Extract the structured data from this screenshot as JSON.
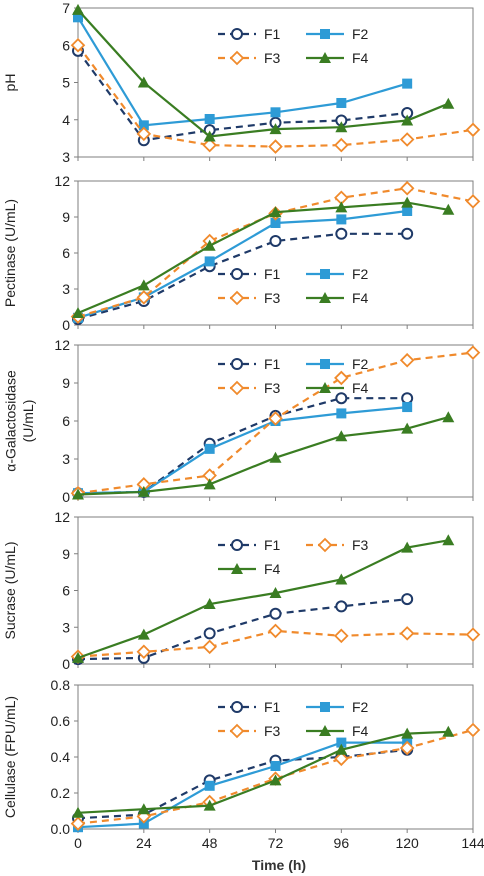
{
  "figure": {
    "xlabel": "Time (h)"
  },
  "series_styles": {
    "F1": {
      "color": "#1f3a68",
      "dash": "7,5",
      "marker": "open-circle"
    },
    "F2": {
      "color": "#2e9bd6",
      "dash": "",
      "marker": "square"
    },
    "F3": {
      "color": "#f08a2c",
      "dash": "7,5",
      "marker": "open-diamond"
    },
    "F4": {
      "color": "#3a7d22",
      "dash": "",
      "marker": "triangle"
    }
  },
  "chart_data": [
    {
      "type": "line",
      "ylabel": "pH",
      "xlabel": "Time (h)",
      "xlim": [
        0,
        144
      ],
      "xticks": [
        0,
        24,
        48,
        72,
        96,
        120,
        144
      ],
      "ylim": [
        3,
        7
      ],
      "yticks": [
        3,
        4,
        5,
        6,
        7
      ],
      "legend_cols": 2,
      "legend_order": [
        "F1",
        "F2",
        "F3",
        "F4"
      ],
      "series": [
        {
          "name": "F1",
          "x": [
            0,
            24,
            48,
            72,
            96,
            120
          ],
          "y": [
            5.85,
            3.45,
            3.72,
            3.92,
            3.98,
            4.18
          ]
        },
        {
          "name": "F2",
          "x": [
            0,
            24,
            48,
            72,
            96,
            120
          ],
          "y": [
            6.75,
            3.85,
            4.02,
            4.2,
            4.45,
            4.97
          ]
        },
        {
          "name": "F3",
          "x": [
            0,
            24,
            48,
            72,
            96,
            120,
            144
          ],
          "y": [
            6.0,
            3.62,
            3.32,
            3.28,
            3.32,
            3.47,
            3.73
          ]
        },
        {
          "name": "F4",
          "x": [
            0,
            24,
            48,
            72,
            96,
            120,
            135
          ],
          "y": [
            6.95,
            5.0,
            3.55,
            3.75,
            3.8,
            3.98,
            4.43
          ]
        }
      ]
    },
    {
      "type": "line",
      "ylabel": "Pectinase (U/mL)",
      "xlabel": "Time (h)",
      "xlim": [
        0,
        144
      ],
      "xticks": [
        0,
        24,
        48,
        72,
        96,
        120,
        144
      ],
      "ylim": [
        0,
        12
      ],
      "yticks": [
        0,
        3,
        6,
        9,
        12
      ],
      "legend_cols": 2,
      "legend_order": [
        "F1",
        "F2",
        "F3",
        "F4"
      ],
      "series": [
        {
          "name": "F1",
          "x": [
            0,
            24,
            48,
            72,
            96,
            120
          ],
          "y": [
            0.5,
            2.0,
            4.9,
            7.0,
            7.6,
            7.6
          ]
        },
        {
          "name": "F2",
          "x": [
            0,
            24,
            48,
            72,
            96,
            120
          ],
          "y": [
            0.6,
            2.3,
            5.3,
            8.5,
            8.8,
            9.5
          ]
        },
        {
          "name": "F3",
          "x": [
            0,
            24,
            48,
            72,
            96,
            120,
            144
          ],
          "y": [
            0.7,
            2.3,
            7.0,
            9.3,
            10.6,
            11.4,
            10.3
          ]
        },
        {
          "name": "F4",
          "x": [
            0,
            24,
            48,
            72,
            96,
            120,
            135
          ],
          "y": [
            1.0,
            3.3,
            6.6,
            9.4,
            9.8,
            10.2,
            9.6
          ]
        }
      ]
    },
    {
      "type": "line",
      "ylabel": "α-Galactosidase (U/mL)",
      "xlabel": "Time (h)",
      "xlim": [
        0,
        144
      ],
      "xticks": [
        0,
        24,
        48,
        72,
        96,
        120,
        144
      ],
      "ylim": [
        0,
        12
      ],
      "yticks": [
        0,
        3,
        6,
        9,
        12
      ],
      "legend_cols": 2,
      "legend_order": [
        "F1",
        "F2",
        "F3",
        "F4"
      ],
      "series": [
        {
          "name": "F1",
          "x": [
            0,
            24,
            48,
            72,
            96,
            120
          ],
          "y": [
            0.3,
            0.4,
            4.2,
            6.4,
            7.8,
            7.8
          ]
        },
        {
          "name": "F2",
          "x": [
            0,
            24,
            48,
            72,
            96,
            120
          ],
          "y": [
            0.3,
            0.4,
            3.8,
            6.0,
            6.6,
            7.1
          ]
        },
        {
          "name": "F3",
          "x": [
            0,
            24,
            48,
            72,
            96,
            120,
            144
          ],
          "y": [
            0.3,
            1.0,
            1.7,
            6.2,
            9.4,
            10.8,
            11.4
          ]
        },
        {
          "name": "F4",
          "x": [
            0,
            24,
            48,
            72,
            96,
            120,
            135
          ],
          "y": [
            0.2,
            0.4,
            1.0,
            3.1,
            4.8,
            5.4,
            6.3
          ]
        }
      ]
    },
    {
      "type": "line",
      "ylabel": "Sucrase (U/mL)",
      "xlabel": "Time (h)",
      "xlim": [
        0,
        144
      ],
      "xticks": [
        0,
        24,
        48,
        72,
        96,
        120,
        144
      ],
      "ylim": [
        0,
        12
      ],
      "yticks": [
        0,
        3,
        6,
        9,
        12
      ],
      "legend_cols": 2,
      "legend_order": [
        "F1",
        "F3",
        "F4"
      ],
      "series": [
        {
          "name": "F1",
          "x": [
            0,
            24,
            48,
            72,
            96,
            120
          ],
          "y": [
            0.4,
            0.5,
            2.5,
            4.1,
            4.7,
            5.3
          ]
        },
        {
          "name": "F3",
          "x": [
            0,
            24,
            48,
            72,
            96,
            120,
            144
          ],
          "y": [
            0.6,
            1.0,
            1.4,
            2.7,
            2.3,
            2.5,
            2.4
          ]
        },
        {
          "name": "F4",
          "x": [
            0,
            24,
            48,
            72,
            96,
            120,
            135
          ],
          "y": [
            0.5,
            2.4,
            4.9,
            5.8,
            6.9,
            9.5,
            10.1
          ]
        }
      ]
    },
    {
      "type": "line",
      "ylabel": "Cellulase (FPU/mL)",
      "xlabel": "Time (h)",
      "xlim": [
        0,
        144
      ],
      "xticks": [
        0,
        24,
        48,
        72,
        96,
        120,
        144
      ],
      "ylim": [
        0,
        0.8
      ],
      "yticks": [
        0.0,
        0.2,
        0.4,
        0.6,
        0.8
      ],
      "ytick_labels": [
        "0.0",
        "0.2",
        "0.4",
        "0.6",
        "0.8"
      ],
      "legend_cols": 2,
      "legend_order": [
        "F1",
        "F2",
        "F3",
        "F4"
      ],
      "series": [
        {
          "name": "F1",
          "x": [
            0,
            24,
            48,
            72,
            96,
            120
          ],
          "y": [
            0.06,
            0.08,
            0.27,
            0.38,
            0.4,
            0.44
          ]
        },
        {
          "name": "F2",
          "x": [
            0,
            24,
            48,
            72,
            96,
            120
          ],
          "y": [
            0.01,
            0.03,
            0.24,
            0.35,
            0.48,
            0.48
          ]
        },
        {
          "name": "F3",
          "x": [
            0,
            24,
            48,
            72,
            96,
            120,
            144
          ],
          "y": [
            0.03,
            0.07,
            0.15,
            0.28,
            0.39,
            0.45,
            0.55
          ]
        },
        {
          "name": "F4",
          "x": [
            0,
            24,
            48,
            72,
            96,
            120,
            135
          ],
          "y": [
            0.09,
            0.11,
            0.13,
            0.27,
            0.44,
            0.53,
            0.54
          ]
        }
      ]
    }
  ]
}
